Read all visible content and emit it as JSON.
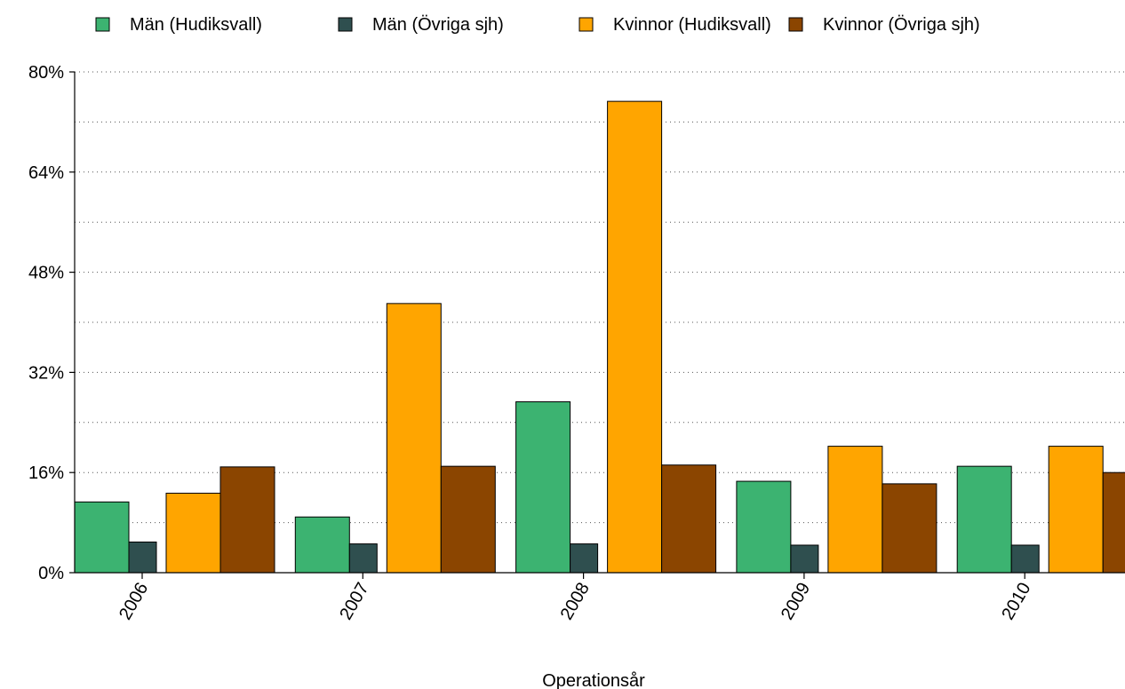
{
  "chart_data": {
    "type": "bar",
    "xlabel": "Operationsår",
    "ylabel": "",
    "categories": [
      "2006",
      "2007",
      "2008",
      "2009",
      "2010"
    ],
    "ylim": [
      0,
      80
    ],
    "yticks": [
      0,
      16,
      32,
      48,
      64,
      80
    ],
    "ytick_labels": [
      "0%",
      "16%",
      "32%",
      "48%",
      "64%",
      "80%"
    ],
    "grid": "horizontal dotted",
    "legend_position": "top",
    "series": [
      {
        "name": "Män (Hudiksvall)",
        "color": "#3cb371",
        "values": [
          11.3,
          8.9,
          27.3,
          14.6,
          17.0
        ]
      },
      {
        "name": "Män (Övriga sjh)",
        "color": "#2f4f4f",
        "values": [
          4.9,
          4.6,
          4.6,
          4.4,
          4.4
        ]
      },
      {
        "name": "Kvinnor (Hudiksvall)",
        "color": "#ffa500",
        "values": [
          12.7,
          43.0,
          75.3,
          20.2,
          20.2
        ]
      },
      {
        "name": "Kvinnor (Övriga sjh)",
        "color": "#8b4500",
        "values": [
          16.9,
          17.0,
          17.2,
          14.2,
          16.0
        ]
      }
    ]
  }
}
